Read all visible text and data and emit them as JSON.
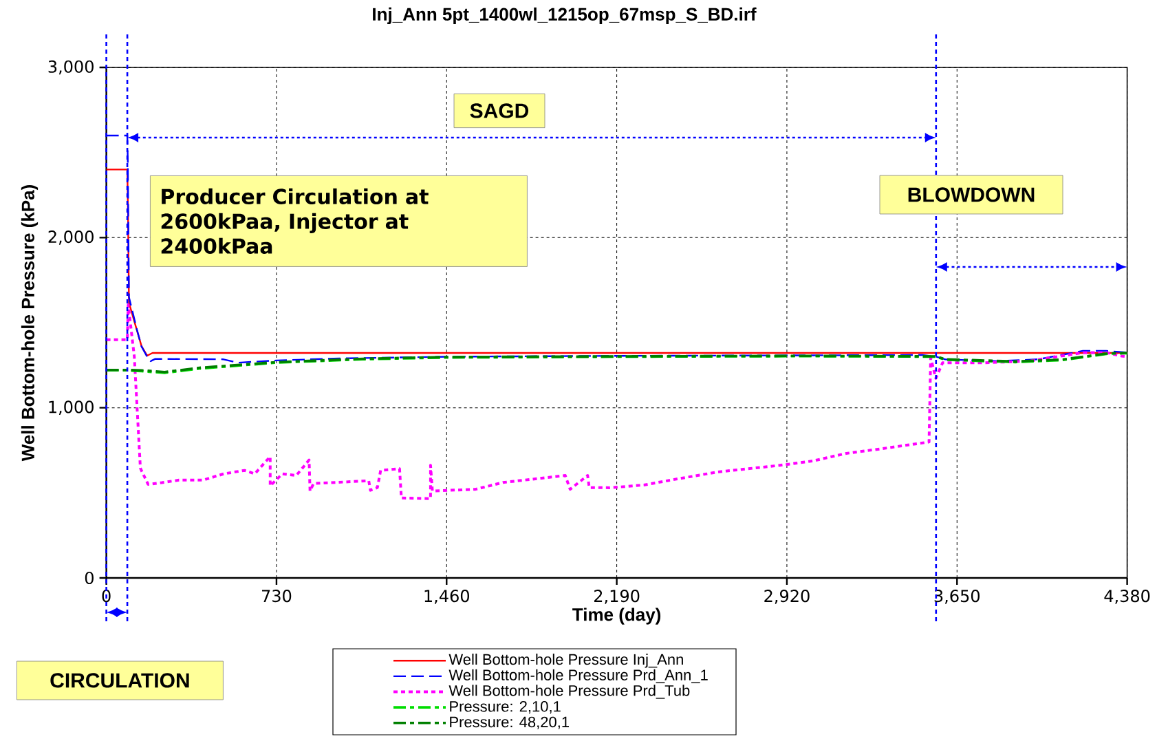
{
  "chart_data": {
    "type": "line",
    "title": "Inj_Ann 5pt_1400wl_1215op_67msp_S_BD.irf",
    "xlabel": "Time (day)",
    "ylabel": "Well Bottom-hole Pressure (kPa)",
    "xlim": [
      0,
      4380
    ],
    "xticks": [
      0,
      730,
      {
        "value": 1460,
        "label": "1,460"
      },
      {
        "value": 2190,
        "label": "2,190"
      },
      {
        "value": 2920,
        "label": "2,920"
      },
      {
        "value": 3650,
        "label": "3,650"
      },
      {
        "value": 4380,
        "label": "4,380"
      }
    ],
    "ylim": [
      0,
      3000
    ],
    "yticks": [
      0,
      {
        "value": 1000,
        "label": "1,000"
      },
      {
        "value": 2000,
        "label": "2,000"
      },
      {
        "value": 3000,
        "label": "3,000"
      }
    ],
    "grid": true,
    "legend": "bottom",
    "series": [
      {
        "name": "Well Bottom-hole Pressure Inj_Ann",
        "color": "#ff0000",
        "line_style": "solid",
        "x": [
          0,
          90,
          93,
          97,
          131,
          151,
          175,
          198,
          4380
        ],
        "values": [
          2400,
          2400,
          2143,
          1617,
          1456,
          1362,
          1306,
          1322,
          1322
        ]
      },
      {
        "name": "Well Bottom-hole Pressure Prd_Ann_1",
        "color": "#0000ff",
        "line_style": "dashed",
        "x": [
          0,
          90,
          92,
          97,
          131,
          151,
          175,
          190,
          210,
          500,
          566,
          730,
          1000,
          1460,
          2190,
          3000,
          3500,
          3560,
          3600,
          3827,
          4000,
          4190,
          4290,
          4380
        ],
        "values": [
          2600,
          2600,
          2450,
          1650,
          1460,
          1360,
          1300,
          1274,
          1287,
          1285,
          1265,
          1278,
          1290,
          1300,
          1305,
          1308,
          1310,
          1300,
          1284,
          1274,
          1285,
          1334,
          1334,
          1325
        ]
      },
      {
        "name": "Well Bottom-hole Pressure Prd_Tub",
        "color": "#ff00ff",
        "line_style": "dotted",
        "x": [
          0,
          90,
          94,
          120,
          146,
          179,
          238,
          312,
          416,
          504,
          593,
          637,
          703,
          703,
          755,
          815,
          870,
          874,
          889,
          1126,
          1133,
          1163,
          1177,
          1258,
          1266,
          1391,
          1391,
          1399,
          1584,
          1702,
          1969,
          1990,
          2065,
          2072,
          2161,
          2306,
          2451,
          2625,
          2886,
          3030,
          3175,
          3320,
          3530,
          3537,
          3559,
          3588,
          3755,
          3958,
          4190,
          4291,
          4356,
          4380
        ],
        "values": [
          1400,
          1400,
          1605,
          1300,
          645,
          550,
          560,
          575,
          575,
          612,
          632,
          612,
          713,
          541,
          612,
          602,
          693,
          511,
          555,
          571,
          515,
          531,
          632,
          642,
          470,
          466,
          662,
          511,
          521,
          561,
          602,
          521,
          602,
          531,
          530,
          546,
          582,
          623,
          661,
          687,
          732,
          758,
          799,
          1294,
          1173,
          1264,
          1264,
          1274,
          1324,
          1324,
          1304,
          1300
        ]
      },
      {
        "name": "Pressure: 2,10,1",
        "color": "#00dd00",
        "line_style": "dashdot",
        "x": [
          0,
          90,
          150,
          250,
          400,
          730,
          1100,
          1460,
          2190,
          3000,
          3560,
          3600,
          3900,
          4100,
          4300,
          4380
        ],
        "values": [
          1220,
          1220,
          1215,
          1205,
          1230,
          1265,
          1285,
          1295,
          1300,
          1303,
          1300,
          1282,
          1268,
          1280,
          1318,
          1320
        ]
      },
      {
        "name": "Pressure: 48,20,1",
        "color": "#008000",
        "line_style": "dashdot",
        "x": [
          0,
          90,
          150,
          250,
          400,
          730,
          1100,
          1460,
          2190,
          3000,
          3560,
          3600,
          3900,
          4100,
          4300,
          4380
        ],
        "values": [
          1222,
          1222,
          1220,
          1210,
          1235,
          1268,
          1288,
          1298,
          1302,
          1305,
          1302,
          1285,
          1272,
          1283,
          1320,
          1322
        ]
      }
    ],
    "ref_lines": [
      {
        "axis": "x",
        "value": 0,
        "color": "#0000ff",
        "line_style": "dotted"
      },
      {
        "axis": "x",
        "value": 90,
        "color": "#0000ff",
        "line_style": "dotted"
      },
      {
        "axis": "x",
        "value": 3560,
        "color": "#0000ff",
        "line_style": "dotted"
      }
    ],
    "annotations": [
      "SAGD",
      "Producer Circulation at 2600kPaa, Injector at 2400kPaa",
      "BLOWDOWN",
      "CIRCULATION"
    ]
  }
}
